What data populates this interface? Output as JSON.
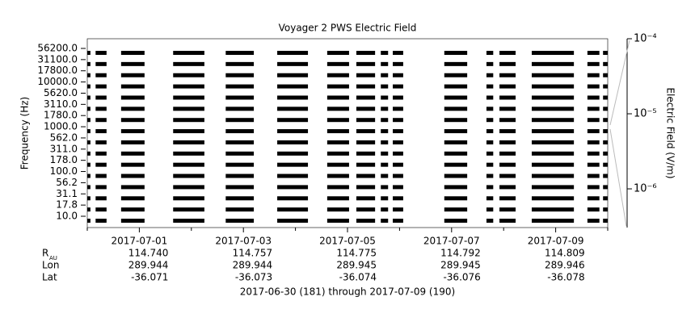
{
  "chart_data": {
    "type": "segments",
    "title": "Voyager 2 PWS Electric Field",
    "y_label": "Frequency (Hz)",
    "y2_label": "Electric Field (V/m)",
    "categories": [
      "56200.0",
      "31100.0",
      "17800.0",
      "10000.0",
      "5620.0",
      "3110.0",
      "1780.0",
      "1000.0",
      "562.0",
      "311.0",
      "178.0",
      "100.0",
      "56.2",
      "31.1",
      "17.8",
      "10.0"
    ],
    "color": "#000000",
    "segments": [
      [
        181.0,
        181.06
      ],
      [
        181.16,
        181.37
      ],
      [
        181.65,
        182.1
      ],
      [
        182.65,
        183.25
      ],
      [
        183.66,
        184.2
      ],
      [
        184.65,
        185.24
      ],
      [
        185.61,
        186.03
      ],
      [
        186.17,
        186.53
      ],
      [
        186.64,
        186.78
      ],
      [
        186.87,
        187.07
      ],
      [
        187.86,
        188.3
      ],
      [
        188.67,
        188.8
      ],
      [
        188.92,
        189.23
      ],
      [
        189.54,
        190.35
      ],
      [
        190.61,
        190.84
      ],
      [
        190.91,
        191.0
      ]
    ],
    "xlim": [
      181,
      191
    ],
    "xticks": [
      {
        "value": 182,
        "label": "2017-07-01"
      },
      {
        "value": 184,
        "label": "2017-07-03"
      },
      {
        "value": 186,
        "label": "2017-07-05"
      },
      {
        "value": 188,
        "label": "2017-07-07"
      },
      {
        "value": 190,
        "label": "2017-07-09"
      }
    ],
    "xminorticks": [
      181,
      183,
      185,
      187,
      189,
      191
    ],
    "y2lim": [
      3.05e-07,
      0.0001
    ],
    "y2log": true,
    "y2ticks": [
      {
        "value": 0.0001,
        "label": "10⁻⁴"
      },
      {
        "value": 1e-05,
        "label": "10⁻⁵"
      },
      {
        "value": 1e-06,
        "label": "10⁻⁶"
      }
    ],
    "ephemeris": [
      {
        "label": "R",
        "sub": "AU",
        "values": [
          "114.740",
          "114.757",
          "114.775",
          "114.792",
          "114.809"
        ]
      },
      {
        "label": "Lon",
        "values": [
          "289.944",
          "289.944",
          "289.945",
          "289.945",
          "289.946"
        ]
      },
      {
        "label": "Lat",
        "values": [
          "-36.071",
          "-36.073",
          "-36.074",
          "-36.076",
          "-36.078"
        ]
      }
    ],
    "footer": "2017-06-30 (181) through 2017-07-09 (190)"
  }
}
